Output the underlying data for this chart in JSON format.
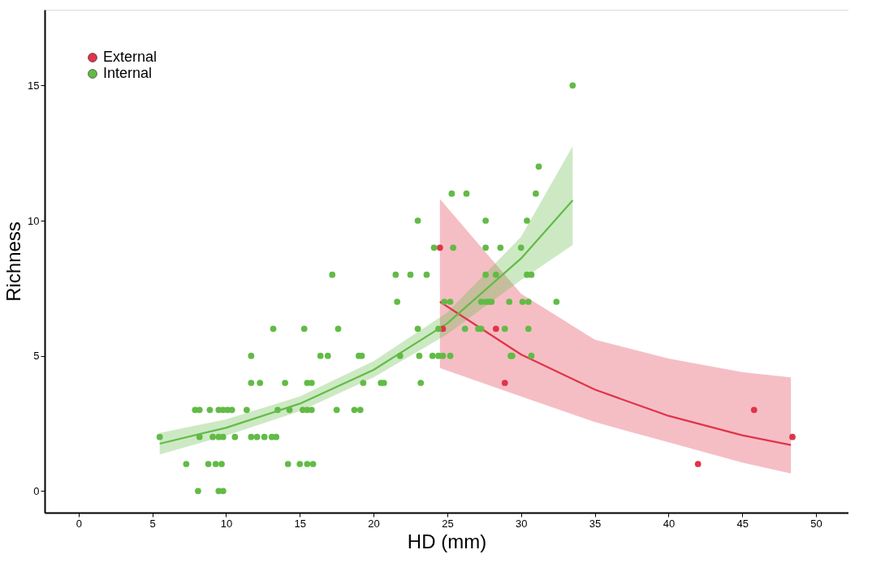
{
  "chart_data": {
    "type": "scatter",
    "xlabel": "HD (mm)",
    "ylabel": "Richness",
    "xlim": [
      -2.3,
      52.2
    ],
    "ylim": [
      -0.8,
      17.8
    ],
    "xticks": [
      0,
      5,
      10,
      15,
      20,
      25,
      30,
      35,
      40,
      45,
      50
    ],
    "yticks": [
      0,
      5,
      10,
      15
    ],
    "grid": false,
    "legend": "top left",
    "marker": "circle",
    "series": [
      {
        "name": "External",
        "color": "#e0344a",
        "x": [
          24.5,
          24.7,
          28.3,
          28.9,
          42.0,
          45.8,
          48.4
        ],
        "values": [
          9,
          6,
          6,
          4,
          1,
          3,
          2
        ]
      },
      {
        "name": "Internal",
        "color": "#62bb46",
        "x": [
          33.5,
          31.2,
          25.3,
          26.3,
          31.0,
          23.0,
          27.6,
          30.4,
          24.1,
          25.4,
          27.6,
          28.6,
          30.0,
          17.2,
          21.5,
          22.5,
          23.6,
          27.6,
          28.3,
          30.4,
          30.7,
          21.6,
          24.8,
          25.2,
          27.3,
          27.6,
          27.8,
          28.0,
          29.2,
          30.1,
          30.5,
          32.4,
          13.2,
          15.3,
          17.6,
          23.0,
          24.4,
          26.2,
          27.1,
          27.3,
          28.9,
          30.5,
          11.7,
          16.4,
          16.9,
          19.0,
          19.2,
          21.8,
          23.1,
          24.0,
          24.4,
          24.7,
          25.2,
          29.3,
          29.4,
          30.7,
          11.7,
          12.3,
          14.0,
          15.5,
          15.8,
          19.3,
          20.5,
          20.7,
          23.2,
          7.9,
          8.2,
          8.9,
          9.5,
          9.8,
          10.1,
          10.4,
          11.4,
          13.5,
          14.3,
          15.2,
          15.5,
          15.8,
          17.5,
          18.7,
          19.1,
          5.5,
          8.2,
          9.1,
          9.5,
          9.8,
          10.6,
          11.7,
          12.1,
          12.6,
          13.1,
          13.4,
          7.3,
          8.8,
          9.3,
          9.7,
          14.2,
          15.0,
          15.5,
          15.9,
          8.1,
          9.5,
          9.8
        ],
        "values": [
          15,
          12,
          11,
          11,
          11,
          10,
          10,
          10,
          9,
          9,
          9,
          9,
          9,
          8,
          8,
          8,
          8,
          8,
          8,
          8,
          8,
          7,
          7,
          7,
          7,
          7,
          7,
          7,
          7,
          7,
          7,
          7,
          6,
          6,
          6,
          6,
          6,
          6,
          6,
          6,
          6,
          6,
          5,
          5,
          5,
          5,
          5,
          5,
          5,
          5,
          5,
          5,
          5,
          5,
          5,
          5,
          4,
          4,
          4,
          4,
          4,
          4,
          4,
          4,
          4,
          3,
          3,
          3,
          3,
          3,
          3,
          3,
          3,
          3,
          3,
          3,
          3,
          3,
          3,
          3,
          3,
          2,
          2,
          2,
          2,
          2,
          2,
          2,
          2,
          2,
          2,
          2,
          1,
          1,
          1,
          1,
          1,
          1,
          1,
          1,
          0,
          0,
          0
        ]
      },
      {
        "type": "line",
        "marker": "none",
        "line_style": "solid",
        "color": "#e0344a",
        "x": [
          24.5,
          30,
          35,
          40,
          45,
          48.3
        ],
        "values": [
          7.0,
          5.05,
          3.75,
          2.78,
          2.06,
          1.7
        ],
        "lower": [
          4.55,
          3.5,
          2.55,
          1.8,
          1.05,
          0.65
        ],
        "upper": [
          10.8,
          7.3,
          5.6,
          4.9,
          4.4,
          4.2
        ]
      },
      {
        "type": "line",
        "marker": "none",
        "line_style": "solid",
        "color": "#62bb46",
        "x": [
          5.5,
          10,
          15,
          20,
          25,
          30,
          33.5
        ],
        "values": [
          1.75,
          2.34,
          3.23,
          4.48,
          6.2,
          8.6,
          10.75
        ],
        "lower": [
          1.35,
          2.05,
          2.95,
          4.2,
          5.8,
          7.8,
          9.1
        ],
        "upper": [
          2.15,
          2.65,
          3.5,
          4.8,
          6.6,
          9.4,
          12.75
        ]
      }
    ]
  }
}
